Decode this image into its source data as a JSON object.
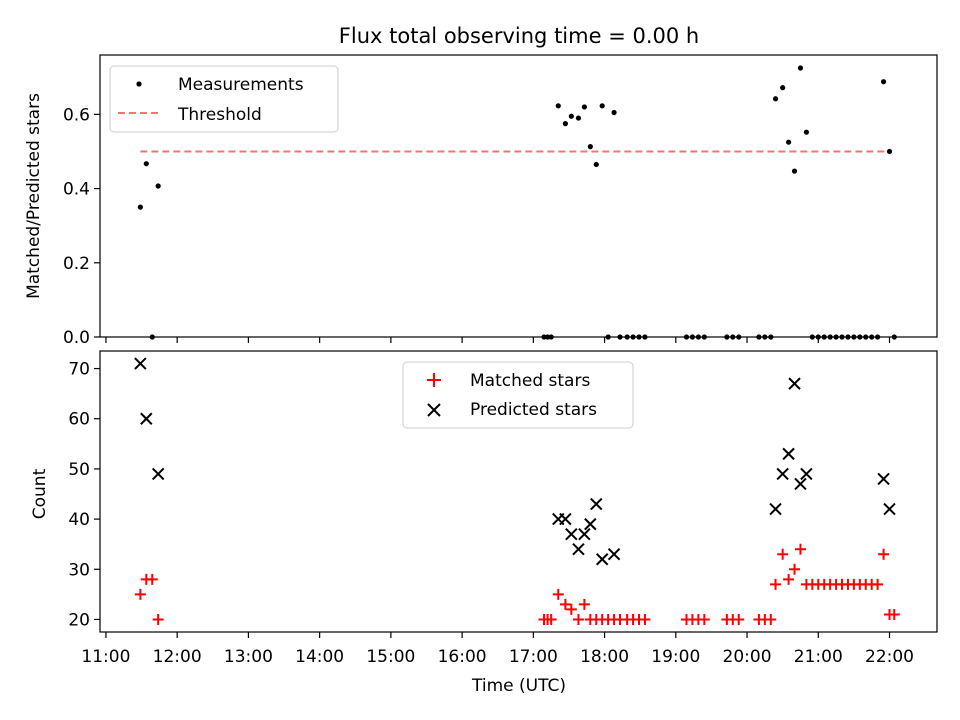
{
  "title": "Flux total observing time = 0.00 h",
  "chart_data": [
    {
      "type": "scatter",
      "ylabel": "Matched/Predicted stars",
      "ylim": [
        0.0,
        0.76
      ],
      "yticks": [
        0.0,
        0.2,
        0.4,
        0.6
      ],
      "ytick_labels": [
        "0.0",
        "0.2",
        "0.4",
        "0.6"
      ],
      "legend_position": "top-left",
      "series": [
        {
          "name": "Measurements",
          "kind": "points",
          "color": "#000000",
          "points": [
            [
              "11:29",
              0.35
            ],
            [
              "11:34",
              0.467
            ],
            [
              "11:39",
              0.0
            ],
            [
              "11:44",
              0.407
            ],
            [
              "17:09",
              0.0
            ],
            [
              "17:12",
              0.0
            ],
            [
              "17:15",
              0.0
            ],
            [
              "17:21",
              0.623
            ],
            [
              "17:27",
              0.575
            ],
            [
              "17:32",
              0.595
            ],
            [
              "17:38",
              0.59
            ],
            [
              "17:43",
              0.62
            ],
            [
              "17:48",
              0.513
            ],
            [
              "17:53",
              0.465
            ],
            [
              "17:58",
              0.623
            ],
            [
              "18:03",
              0.0
            ],
            [
              "18:08",
              0.605
            ],
            [
              "18:13",
              0.0
            ],
            [
              "18:19",
              0.0
            ],
            [
              "18:24",
              0.0
            ],
            [
              "18:29",
              0.0
            ],
            [
              "18:34",
              0.0
            ],
            [
              "19:09",
              0.0
            ],
            [
              "19:14",
              0.0
            ],
            [
              "19:19",
              0.0
            ],
            [
              "19:24",
              0.0
            ],
            [
              "19:43",
              0.0
            ],
            [
              "19:48",
              0.0
            ],
            [
              "19:53",
              0.0
            ],
            [
              "20:10",
              0.0
            ],
            [
              "20:15",
              0.0
            ],
            [
              "20:20",
              0.0
            ],
            [
              "20:24",
              0.642
            ],
            [
              "20:30",
              0.672
            ],
            [
              "20:35",
              0.525
            ],
            [
              "20:40",
              0.447
            ],
            [
              "20:45",
              0.725
            ],
            [
              "20:50",
              0.552
            ],
            [
              "20:55",
              0.0
            ],
            [
              "21:00",
              0.0
            ],
            [
              "21:05",
              0.0
            ],
            [
              "21:10",
              0.0
            ],
            [
              "21:15",
              0.0
            ],
            [
              "21:20",
              0.0
            ],
            [
              "21:25",
              0.0
            ],
            [
              "21:30",
              0.0
            ],
            [
              "21:35",
              0.0
            ],
            [
              "21:40",
              0.0
            ],
            [
              "21:45",
              0.0
            ],
            [
              "21:50",
              0.0
            ],
            [
              "21:55",
              0.688
            ],
            [
              "22:00",
              0.5
            ],
            [
              "22:04",
              0.0
            ]
          ]
        },
        {
          "name": "Threshold",
          "kind": "line",
          "style": "dashed",
          "color": "#ff7070",
          "points": [
            [
              "11:29",
              0.5
            ],
            [
              "22:00",
              0.5
            ]
          ]
        }
      ]
    },
    {
      "type": "scatter",
      "xlabel": "Time (UTC)",
      "ylabel": "Count",
      "xlim": [
        "10:55",
        "22:40"
      ],
      "xticks": [
        "11:00",
        "12:00",
        "13:00",
        "14:00",
        "15:00",
        "16:00",
        "17:00",
        "18:00",
        "19:00",
        "20:00",
        "21:00",
        "22:00"
      ],
      "ylim": [
        17.5,
        73.5
      ],
      "yticks": [
        20,
        30,
        40,
        50,
        60,
        70
      ],
      "ytick_labels": [
        "20",
        "30",
        "40",
        "50",
        "60",
        "70"
      ],
      "legend_position": "upper-center",
      "series": [
        {
          "name": "Matched stars",
          "marker": "plus",
          "color": "#ff0000",
          "points": [
            [
              "11:29",
              25
            ],
            [
              "11:34",
              28
            ],
            [
              "11:39",
              28
            ],
            [
              "11:44",
              20
            ],
            [
              "17:09",
              20
            ],
            [
              "17:12",
              20
            ],
            [
              "17:15",
              20
            ],
            [
              "17:21",
              25
            ],
            [
              "17:27",
              23
            ],
            [
              "17:32",
              22
            ],
            [
              "17:38",
              20
            ],
            [
              "17:43",
              23
            ],
            [
              "17:48",
              20
            ],
            [
              "17:53",
              20
            ],
            [
              "17:58",
              20
            ],
            [
              "18:03",
              20
            ],
            [
              "18:08",
              20
            ],
            [
              "18:13",
              20
            ],
            [
              "18:19",
              20
            ],
            [
              "18:24",
              20
            ],
            [
              "18:29",
              20
            ],
            [
              "18:34",
              20
            ],
            [
              "19:09",
              20
            ],
            [
              "19:14",
              20
            ],
            [
              "19:19",
              20
            ],
            [
              "19:24",
              20
            ],
            [
              "19:43",
              20
            ],
            [
              "19:48",
              20
            ],
            [
              "19:53",
              20
            ],
            [
              "20:10",
              20
            ],
            [
              "20:15",
              20
            ],
            [
              "20:20",
              20
            ],
            [
              "20:24",
              27
            ],
            [
              "20:30",
              33
            ],
            [
              "20:35",
              28
            ],
            [
              "20:40",
              30
            ],
            [
              "20:45",
              34
            ],
            [
              "20:50",
              27
            ],
            [
              "20:55",
              27
            ],
            [
              "21:00",
              27
            ],
            [
              "21:05",
              27
            ],
            [
              "21:10",
              27
            ],
            [
              "21:15",
              27
            ],
            [
              "21:20",
              27
            ],
            [
              "21:25",
              27
            ],
            [
              "21:30",
              27
            ],
            [
              "21:35",
              27
            ],
            [
              "21:40",
              27
            ],
            [
              "21:45",
              27
            ],
            [
              "21:50",
              27
            ],
            [
              "21:55",
              33
            ],
            [
              "22:00",
              21
            ],
            [
              "22:04",
              21
            ]
          ]
        },
        {
          "name": "Predicted stars",
          "marker": "x",
          "color": "#000000",
          "points": [
            [
              "11:29",
              71
            ],
            [
              "11:34",
              60
            ],
            [
              "11:44",
              49
            ],
            [
              "17:21",
              40
            ],
            [
              "17:27",
              40
            ],
            [
              "17:32",
              37
            ],
            [
              "17:38",
              34
            ],
            [
              "17:43",
              37
            ],
            [
              "17:48",
              39
            ],
            [
              "17:53",
              43
            ],
            [
              "17:58",
              32
            ],
            [
              "18:08",
              33
            ],
            [
              "20:24",
              42
            ],
            [
              "20:30",
              49
            ],
            [
              "20:35",
              53
            ],
            [
              "20:40",
              67
            ],
            [
              "20:45",
              47
            ],
            [
              "20:50",
              49
            ],
            [
              "21:55",
              48
            ],
            [
              "22:00",
              42
            ]
          ]
        }
      ]
    }
  ]
}
